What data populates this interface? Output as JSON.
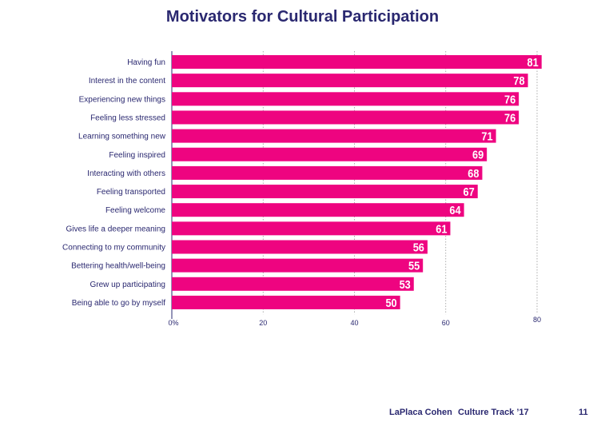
{
  "chart_data": {
    "type": "bar",
    "orientation": "horizontal",
    "title": "Motivators for Cultural Participation",
    "categories": [
      "Having fun",
      "Interest in the content",
      "Experiencing new things",
      "Feeling less stressed",
      "Learning something new",
      "Feeling inspired",
      "Interacting with others",
      "Feeling transported",
      "Feeling welcome",
      "Gives life a deeper meaning",
      "Connecting to my community",
      "Bettering health/well-being",
      "Grew up participating",
      "Being able to go by myself"
    ],
    "values": [
      81,
      78,
      76,
      76,
      71,
      69,
      68,
      67,
      64,
      61,
      56,
      55,
      53,
      50
    ],
    "xlim": [
      0,
      80
    ],
    "xticks": [
      0,
      20,
      40,
      60,
      80
    ],
    "xtick_labels": [
      "0%",
      "20",
      "40",
      "60",
      "80"
    ],
    "grid": "vertical dashed",
    "data_labels": true,
    "bar_color": "#ee0480",
    "text_color": "#2a2870"
  },
  "footer": {
    "brand": "LaPlaca Cohen",
    "publication": "Culture Track ’17",
    "page": "11"
  }
}
